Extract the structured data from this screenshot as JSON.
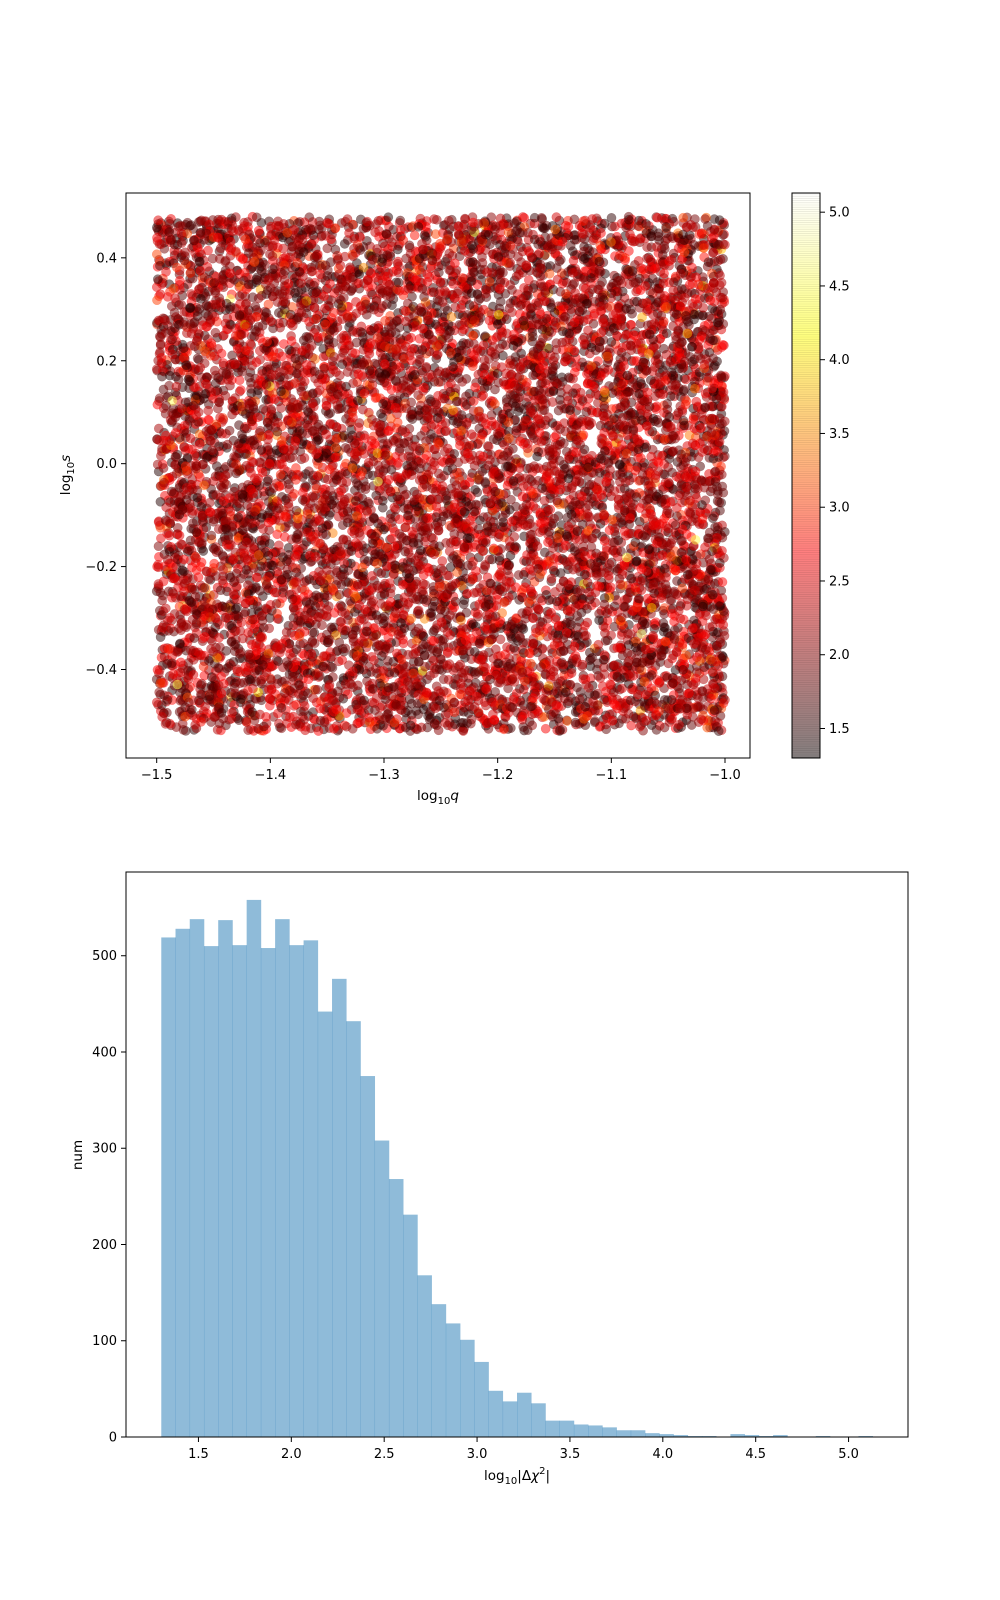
{
  "chart_data": [
    {
      "type": "scatter",
      "xlabel": "log₁₀q",
      "ylabel": "log₁₀s",
      "xlim": [
        -1.527,
        -0.978
      ],
      "ylim": [
        -0.572,
        0.526
      ],
      "x_ticks": [
        -1.5,
        -1.4,
        -1.3,
        -1.2,
        -1.1,
        -1.0
      ],
      "x_tick_labels": [
        "−1.5",
        "−1.4",
        "−1.3",
        "−1.2",
        "−1.1",
        "−1.0"
      ],
      "y_ticks": [
        -0.4,
        -0.2,
        0.0,
        0.2,
        0.4
      ],
      "y_tick_labels": [
        "−0.4",
        "−0.2",
        "0.0",
        "0.2",
        "0.4"
      ],
      "points": {
        "count": 10000,
        "x_range": [
          -1.5,
          -1.0
        ],
        "y_range": [
          -0.52,
          0.48
        ],
        "color_value_range": [
          1.3,
          5.13
        ],
        "distribution": "uniform in x and y; color values follow the histogram distribution of the second panel"
      },
      "marker": "circle",
      "alpha": 0.5,
      "grid": false,
      "colorbar": {
        "colormap": "hot",
        "range": [
          1.3,
          5.13
        ],
        "ticks": [
          1.5,
          2.0,
          2.5,
          3.0,
          3.5,
          4.0,
          4.5,
          5.0
        ],
        "tick_labels": [
          "1.5",
          "2.0",
          "2.5",
          "3.0",
          "3.5",
          "4.0",
          "4.5",
          "5.0"
        ],
        "alpha": 0.5
      }
    },
    {
      "type": "bar",
      "subtype": "histogram",
      "xlabel": "log₁₀|Δχ²|",
      "ylabel": "num",
      "xlim": [
        1.11,
        5.32
      ],
      "ylim": [
        0,
        587
      ],
      "x_ticks": [
        1.5,
        2.0,
        2.5,
        3.0,
        3.5,
        4.0,
        4.5,
        5.0
      ],
      "x_tick_labels": [
        "1.5",
        "2.0",
        "2.5",
        "3.0",
        "3.5",
        "4.0",
        "4.5",
        "5.0"
      ],
      "y_ticks": [
        0,
        100,
        200,
        300,
        400,
        500
      ],
      "y_tick_labels": [
        "0",
        "100",
        "200",
        "300",
        "400",
        "500"
      ],
      "bin_start": 1.3,
      "bin_width": 0.0766,
      "bin_counts": [
        519,
        528,
        538,
        510,
        537,
        511,
        558,
        508,
        538,
        511,
        516,
        442,
        476,
        432,
        375,
        308,
        268,
        231,
        168,
        138,
        118,
        101,
        78,
        48,
        37,
        46,
        35,
        17,
        17,
        13,
        12,
        10,
        7,
        7,
        4,
        3,
        2,
        1,
        1,
        0,
        3,
        2,
        1,
        2,
        0,
        0,
        1,
        0,
        0,
        1
      ],
      "color": "#1f77b4",
      "alpha": 0.5,
      "grid": false
    }
  ]
}
